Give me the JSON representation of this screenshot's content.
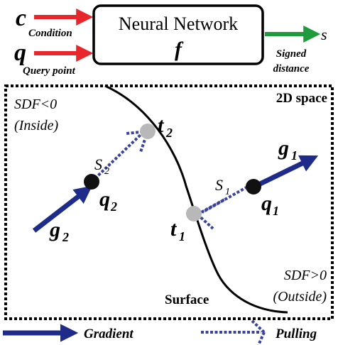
{
  "inputs": {
    "condition_symbol": "c",
    "condition_label": "Condition",
    "query_symbol": "q",
    "query_label": "Query point"
  },
  "network": {
    "title": "Neural Network",
    "function_symbol": "f"
  },
  "output": {
    "symbol": "s",
    "label_line1": "Signed",
    "label_line2": "distance"
  },
  "space": {
    "title": "2D space",
    "inside_line1": "SDF<0",
    "inside_line2": "(Inside)",
    "outside_line1": "SDF>0",
    "outside_line2": "(Outside)",
    "surface_label": "Surface"
  },
  "points": {
    "t1_base": "t",
    "t1_sub": "1",
    "t2_base": "t",
    "t2_sub": "2",
    "q1_base": "q",
    "q1_sub": "1",
    "q2_base": "q",
    "q2_sub": "2",
    "g1_base": "g",
    "g1_sub": "1",
    "g2_base": "g",
    "g2_sub": "2",
    "s1_base": "S",
    "s1_sub": "1",
    "s2_base": "S",
    "s2_sub": "2"
  },
  "legend": {
    "gradient_label": "Gradient",
    "pulling_label": "Pulling"
  },
  "colors": {
    "input_arrow": "#e8262b",
    "output_arrow": "#1f9a3c",
    "gradient": "#1f2b8a",
    "pulling": "#3a43a0",
    "surface_point": "#b8b8b8",
    "query_point": "#111111"
  }
}
